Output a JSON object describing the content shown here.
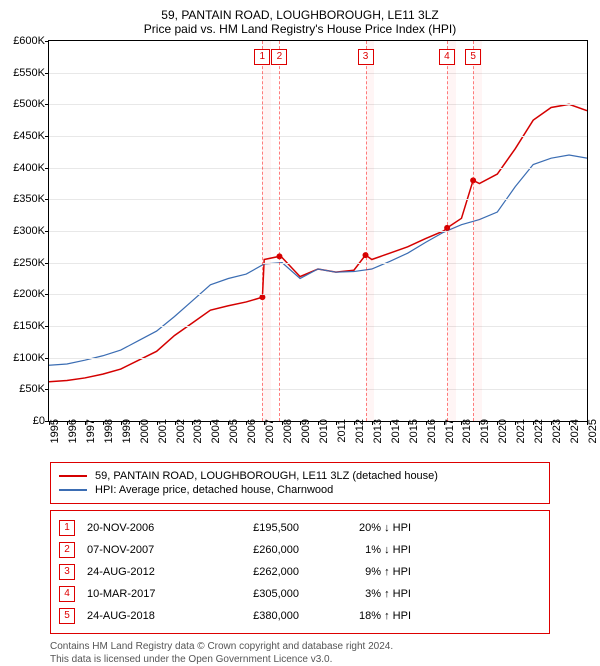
{
  "title": "59, PANTAIN ROAD, LOUGHBOROUGH, LE11 3LZ",
  "subtitle": "Price paid vs. HM Land Registry's House Price Index (HPI)",
  "chart": {
    "type": "line",
    "ylim": [
      0,
      600000
    ],
    "ytick_step": 50000,
    "ytick_labels": [
      "£0",
      "£50K",
      "£100K",
      "£150K",
      "£200K",
      "£250K",
      "£300K",
      "£350K",
      "£400K",
      "£450K",
      "£500K",
      "£550K",
      "£600K"
    ],
    "xlim": [
      1995,
      2025
    ],
    "xticks": [
      1995,
      1996,
      1997,
      1998,
      1999,
      2000,
      2001,
      2002,
      2003,
      2004,
      2005,
      2006,
      2007,
      2008,
      2009,
      2010,
      2011,
      2012,
      2013,
      2014,
      2015,
      2016,
      2017,
      2018,
      2019,
      2020,
      2021,
      2022,
      2023,
      2024,
      2025
    ],
    "series": [
      {
        "name": "59, PANTAIN ROAD, LOUGHBOROUGH, LE11 3LZ (detached house)",
        "color": "#d40000",
        "line_width": 1.5,
        "points": [
          [
            1995,
            62000
          ],
          [
            1996,
            64000
          ],
          [
            1997,
            68000
          ],
          [
            1998,
            74000
          ],
          [
            1999,
            82000
          ],
          [
            2000,
            96000
          ],
          [
            2001,
            110000
          ],
          [
            2002,
            135000
          ],
          [
            2003,
            155000
          ],
          [
            2004,
            175000
          ],
          [
            2005,
            182000
          ],
          [
            2006,
            188000
          ],
          [
            2006.9,
            195500
          ],
          [
            2007,
            255000
          ],
          [
            2007.85,
            260000
          ],
          [
            2008,
            258000
          ],
          [
            2009,
            228000
          ],
          [
            2010,
            240000
          ],
          [
            2011,
            235000
          ],
          [
            2012,
            238000
          ],
          [
            2012.65,
            262000
          ],
          [
            2013,
            255000
          ],
          [
            2014,
            265000
          ],
          [
            2015,
            275000
          ],
          [
            2016,
            288000
          ],
          [
            2017,
            300000
          ],
          [
            2017.2,
            305000
          ],
          [
            2018,
            320000
          ],
          [
            2018.65,
            380000
          ],
          [
            2019,
            375000
          ],
          [
            2020,
            390000
          ],
          [
            2021,
            430000
          ],
          [
            2022,
            475000
          ],
          [
            2023,
            495000
          ],
          [
            2024,
            500000
          ],
          [
            2025,
            490000
          ]
        ]
      },
      {
        "name": "HPI: Average price, detached house, Charnwood",
        "color": "#3b6db3",
        "line_width": 1.2,
        "points": [
          [
            1995,
            88000
          ],
          [
            1996,
            90000
          ],
          [
            1997,
            96000
          ],
          [
            1998,
            103000
          ],
          [
            1999,
            112000
          ],
          [
            2000,
            127000
          ],
          [
            2001,
            142000
          ],
          [
            2002,
            165000
          ],
          [
            2003,
            190000
          ],
          [
            2004,
            215000
          ],
          [
            2005,
            225000
          ],
          [
            2006,
            232000
          ],
          [
            2007,
            248000
          ],
          [
            2008,
            250000
          ],
          [
            2009,
            225000
          ],
          [
            2010,
            240000
          ],
          [
            2011,
            235000
          ],
          [
            2012,
            236000
          ],
          [
            2013,
            240000
          ],
          [
            2014,
            252000
          ],
          [
            2015,
            265000
          ],
          [
            2016,
            282000
          ],
          [
            2017,
            298000
          ],
          [
            2018,
            310000
          ],
          [
            2019,
            318000
          ],
          [
            2020,
            330000
          ],
          [
            2021,
            370000
          ],
          [
            2022,
            405000
          ],
          [
            2023,
            415000
          ],
          [
            2024,
            420000
          ],
          [
            2025,
            415000
          ]
        ]
      }
    ],
    "markers": [
      {
        "n": "1",
        "x": 2006.89,
        "y": 85
      },
      {
        "n": "2",
        "x": 2007.85,
        "y": 85
      },
      {
        "n": "3",
        "x": 2012.65,
        "y": 85
      },
      {
        "n": "4",
        "x": 2017.19,
        "y": 85
      },
      {
        "n": "5",
        "x": 2018.65,
        "y": 85
      }
    ],
    "sale_bands": [
      {
        "x": 2006.89,
        "w": 0.5
      },
      {
        "x": 2012.65,
        "w": 0.5
      },
      {
        "x": 2017.19,
        "w": 0.5
      },
      {
        "x": 2018.65,
        "w": 0.5
      }
    ],
    "background_color": "#ffffff",
    "grid_color": "#e8e8e8",
    "marker_border": "#d40000"
  },
  "legend": [
    {
      "color": "#d40000",
      "label": "59, PANTAIN ROAD, LOUGHBOROUGH, LE11 3LZ (detached house)"
    },
    {
      "color": "#3b6db3",
      "label": "HPI: Average price, detached house, Charnwood"
    }
  ],
  "sales": [
    {
      "n": "1",
      "date": "20-NOV-2006",
      "price": "£195,500",
      "delta": "20% ↓ HPI"
    },
    {
      "n": "2",
      "date": "07-NOV-2007",
      "price": "£260,000",
      "delta": "1% ↓ HPI"
    },
    {
      "n": "3",
      "date": "24-AUG-2012",
      "price": "£262,000",
      "delta": "9% ↑ HPI"
    },
    {
      "n": "4",
      "date": "10-MAR-2017",
      "price": "£305,000",
      "delta": "3% ↑ HPI"
    },
    {
      "n": "5",
      "date": "24-AUG-2018",
      "price": "£380,000",
      "delta": "18% ↑ HPI"
    }
  ],
  "footer_line1": "Contains HM Land Registry data © Crown copyright and database right 2024.",
  "footer_line2": "This data is licensed under the Open Government Licence v3.0."
}
